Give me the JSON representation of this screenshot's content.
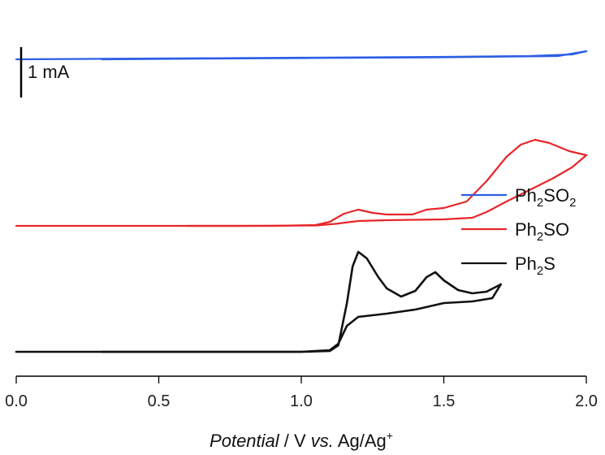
{
  "chart_data": {
    "type": "line",
    "xlabel": {
      "italic": "Potential",
      "middle": " / V ",
      "italic2": "vs.",
      "rest": " Ag/Ag",
      "sup": "+"
    },
    "xlim": [
      0.0,
      2.0
    ],
    "x_ticks": [
      {
        "value": 0.0,
        "label": "0.0"
      },
      {
        "value": 0.5,
        "label": "0.5"
      },
      {
        "value": 1.0,
        "label": "1.0"
      },
      {
        "value": 1.5,
        "label": "1.5"
      },
      {
        "value": 2.0,
        "label": "2.0"
      }
    ],
    "scale_bar": {
      "label": "1 mA",
      "value_mA": 1
    },
    "legend_position": "right",
    "series": [
      {
        "key": "ph2so2",
        "name": {
          "prefix": "Ph",
          "sub1": "2",
          "mid": "SO",
          "sub2": "2"
        },
        "color": "#2d5ee6",
        "baseline_offset_mA": 3.6,
        "forward": [
          [
            0.0,
            0
          ],
          [
            0.5,
            0.01
          ],
          [
            1.0,
            0.02
          ],
          [
            1.5,
            0.03
          ],
          [
            1.8,
            0.04
          ],
          [
            1.95,
            0.06
          ],
          [
            2.0,
            0.1
          ]
        ],
        "backward": [
          [
            2.0,
            0.1
          ],
          [
            1.9,
            0.04
          ],
          [
            1.5,
            0.025
          ],
          [
            1.0,
            0.015
          ],
          [
            0.5,
            0.005
          ],
          [
            0.3,
            0
          ]
        ]
      },
      {
        "key": "ph2so",
        "name": {
          "prefix": "Ph",
          "sub1": "2",
          "mid": "SO",
          "sub2": ""
        },
        "color": "#e8262a",
        "baseline_offset_mA": 1.55,
        "forward": [
          [
            0.0,
            0
          ],
          [
            0.9,
            0
          ],
          [
            1.05,
            0.01
          ],
          [
            1.1,
            0.05
          ],
          [
            1.15,
            0.15
          ],
          [
            1.2,
            0.2
          ],
          [
            1.25,
            0.16
          ],
          [
            1.3,
            0.14
          ],
          [
            1.39,
            0.14
          ],
          [
            1.44,
            0.2
          ],
          [
            1.5,
            0.22
          ],
          [
            1.58,
            0.3
          ],
          [
            1.65,
            0.55
          ],
          [
            1.72,
            0.85
          ],
          [
            1.77,
            1.0
          ],
          [
            1.82,
            1.06
          ],
          [
            1.87,
            1.02
          ],
          [
            1.94,
            0.92
          ],
          [
            2.0,
            0.87
          ]
        ],
        "backward": [
          [
            2.0,
            0.87
          ],
          [
            1.95,
            0.72
          ],
          [
            1.88,
            0.58
          ],
          [
            1.8,
            0.44
          ],
          [
            1.72,
            0.3
          ],
          [
            1.65,
            0.17
          ],
          [
            1.6,
            0.1
          ],
          [
            1.5,
            0.08
          ],
          [
            1.4,
            0.075
          ],
          [
            1.3,
            0.07
          ],
          [
            1.2,
            0.06
          ],
          [
            1.12,
            0.025
          ],
          [
            1.05,
            0.005
          ],
          [
            0.8,
            0
          ],
          [
            0.6,
            0
          ]
        ]
      },
      {
        "key": "ph2s",
        "name": {
          "prefix": "Ph",
          "sub1": "2",
          "mid": "S",
          "sub2": ""
        },
        "color": "#111111",
        "baseline_offset_mA": 0.0,
        "forward": [
          [
            0.0,
            0
          ],
          [
            1.0,
            0
          ],
          [
            1.1,
            0.01
          ],
          [
            1.13,
            0.08
          ],
          [
            1.16,
            0.6
          ],
          [
            1.18,
            1.05
          ],
          [
            1.2,
            1.23
          ],
          [
            1.23,
            1.15
          ],
          [
            1.27,
            0.92
          ],
          [
            1.3,
            0.78
          ],
          [
            1.35,
            0.68
          ],
          [
            1.4,
            0.75
          ],
          [
            1.44,
            0.92
          ],
          [
            1.47,
            0.98
          ],
          [
            1.5,
            0.88
          ],
          [
            1.55,
            0.76
          ],
          [
            1.6,
            0.72
          ],
          [
            1.65,
            0.74
          ],
          [
            1.7,
            0.83
          ]
        ],
        "backward": [
          [
            1.7,
            0.83
          ],
          [
            1.67,
            0.66
          ],
          [
            1.6,
            0.62
          ],
          [
            1.5,
            0.6
          ],
          [
            1.4,
            0.52
          ],
          [
            1.3,
            0.47
          ],
          [
            1.2,
            0.43
          ],
          [
            1.16,
            0.32
          ],
          [
            1.13,
            0.1
          ],
          [
            1.1,
            0.02
          ],
          [
            1.0,
            0
          ],
          [
            0.5,
            0
          ],
          [
            0.3,
            0
          ]
        ]
      }
    ]
  }
}
